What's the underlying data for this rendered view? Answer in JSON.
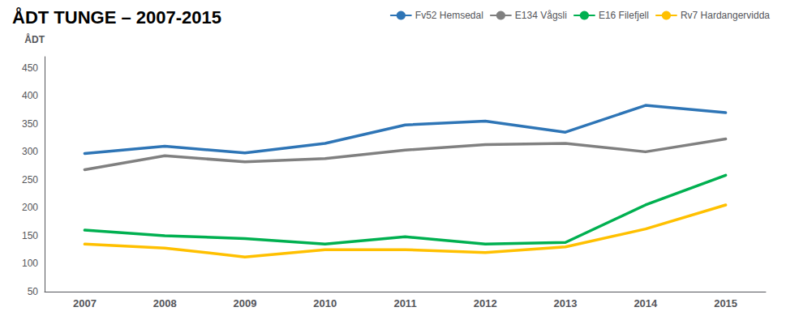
{
  "chart_data": {
    "type": "line",
    "title": "ÅDT TUNGE – 2007-2015",
    "ylabel": "ÅDT",
    "categories": [
      2007,
      2008,
      2009,
      2010,
      2011,
      2012,
      2013,
      2014,
      2015
    ],
    "series": [
      {
        "name": "Fv52 Hemsedal",
        "color": "#2E75B6",
        "values": [
          297,
          310,
          298,
          315,
          348,
          355,
          335,
          383,
          370
        ]
      },
      {
        "name": "E134 Vågsli",
        "color": "#808080",
        "values": [
          268,
          293,
          282,
          288,
          303,
          313,
          315,
          300,
          323
        ]
      },
      {
        "name": "E16 Filefjell",
        "color": "#00B050",
        "values": [
          160,
          150,
          145,
          135,
          148,
          135,
          138,
          205,
          258
        ]
      },
      {
        "name": "Rv7 Hardangervidda",
        "color": "#FFC000",
        "values": [
          135,
          128,
          112,
          125,
          125,
          120,
          130,
          162,
          205
        ]
      }
    ],
    "ylim": [
      50,
      470
    ],
    "yticks": [
      50,
      100,
      150,
      200,
      250,
      300,
      350,
      400,
      450
    ],
    "grid": false,
    "legend": "top-right"
  }
}
